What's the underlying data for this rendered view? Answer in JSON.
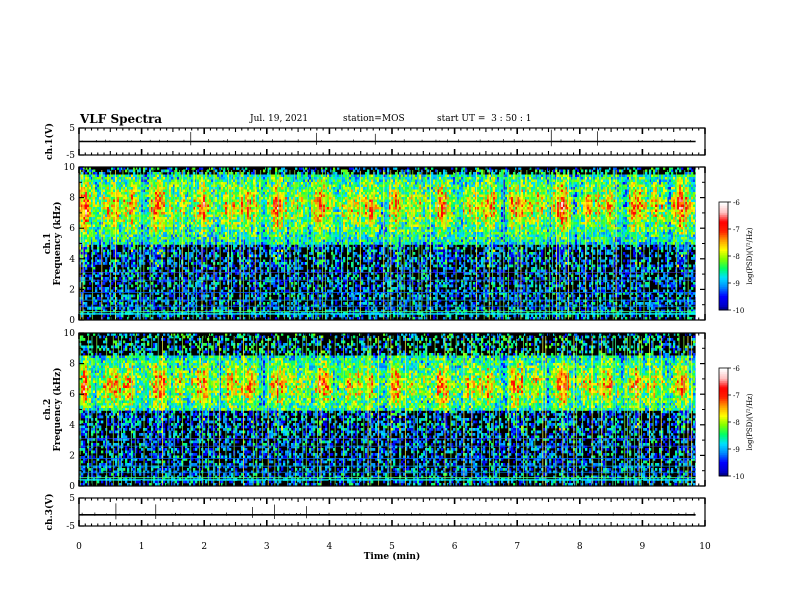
{
  "header": {
    "title": "VLF Spectra",
    "date": "Jul. 19, 2021",
    "station": "station=MOS",
    "start": "start UT =  3 : 50 : 1"
  },
  "chart_data": [
    {
      "type": "line",
      "panel": "ch1-waveform",
      "ylabel": "ch.1(V)",
      "ylim": [
        -5,
        5
      ],
      "yticks": [
        "5",
        "-5"
      ],
      "xlim": [
        0,
        10
      ],
      "series": [
        {
          "x": [
            0,
            9.85
          ],
          "y": [
            0,
            0
          ]
        }
      ]
    },
    {
      "type": "heatmap",
      "panel": "ch1-spectrogram",
      "ylabel": "ch.1 Frequency (kHz)",
      "ylim": [
        0,
        10
      ],
      "yticks": [
        "0",
        "2",
        "4",
        "6",
        "8",
        "10"
      ],
      "xlim": [
        0,
        10
      ],
      "data_end_min": 9.85,
      "dominant_band_khz": [
        5,
        9
      ],
      "strong_band_khz": [
        6,
        9
      ],
      "colorbar": {
        "label": "log(PSD)(V²/Hz)",
        "range": [
          -10,
          -6
        ],
        "ticks": [
          "-6",
          "-7",
          "-8",
          "-9",
          "-10"
        ]
      }
    },
    {
      "type": "heatmap",
      "panel": "ch2-spectrogram",
      "ylabel": "ch.2 Frequency (kHz)",
      "ylim": [
        0,
        10
      ],
      "yticks": [
        "0",
        "2",
        "4",
        "6",
        "8",
        "10"
      ],
      "xlim": [
        0,
        10
      ],
      "data_end_min": 9.85,
      "dominant_band_khz": [
        5,
        8
      ],
      "strong_band_khz": [
        5.5,
        7.8
      ],
      "colorbar": {
        "label": "log(PSD)(V²/Hz)",
        "range": [
          -10,
          -6
        ],
        "ticks": [
          "-6",
          "-7",
          "-8",
          "-9",
          "-10"
        ]
      }
    },
    {
      "type": "line",
      "panel": "ch3-waveform",
      "ylabel": "ch.3(V)",
      "ylim": [
        -5,
        5
      ],
      "yticks": [
        "5",
        "-5"
      ],
      "xlim": [
        0,
        10
      ],
      "series": [
        {
          "x": [
            0,
            9.85
          ],
          "y": [
            -1,
            -1
          ]
        }
      ]
    }
  ],
  "x_axis": {
    "label": "Time (min)",
    "ticks": [
      "0",
      "1",
      "2",
      "3",
      "4",
      "5",
      "6",
      "7",
      "8",
      "9",
      "10"
    ]
  },
  "colors": {
    "colormap": [
      "#000000",
      "#0000c8",
      "#0000ff",
      "#0088ff",
      "#00e0ff",
      "#00ff66",
      "#80ff00",
      "#ffff00",
      "#ffa000",
      "#ff2000",
      "#ff0000",
      "#ffc0c0",
      "#ffffff"
    ],
    "axis": "#000000",
    "background": "#ffffff"
  }
}
